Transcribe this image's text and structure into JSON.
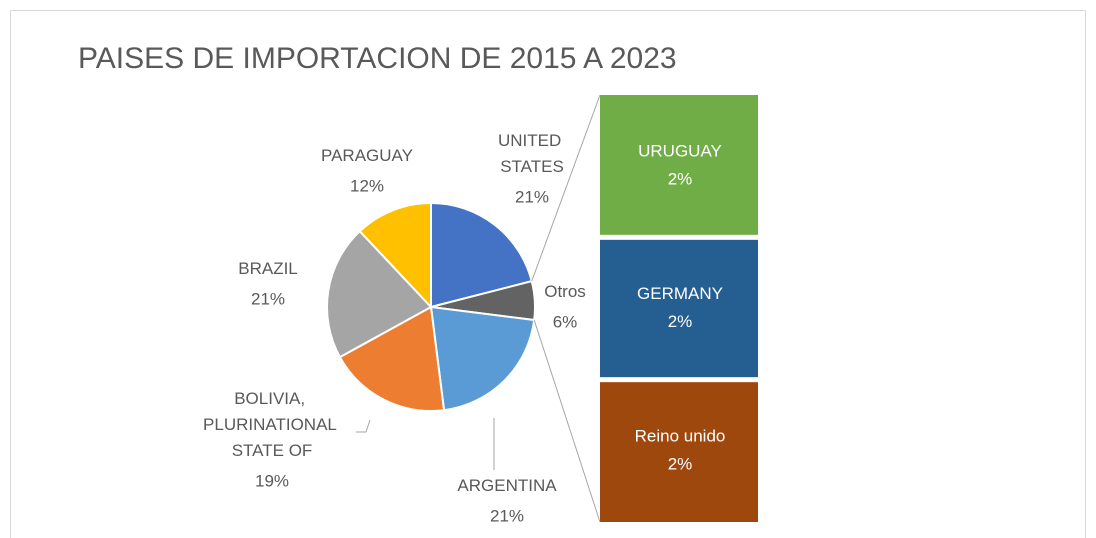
{
  "chart_data": {
    "type": "pie-of-bar",
    "title": "PAISES DE IMPORTACION DE 2015 A 2023",
    "categories": [
      "UNITED STATES",
      "Otros",
      "ARGENTINA",
      "BOLIVIA, PLURINATIONAL STATE OF",
      "BRAZIL",
      "PARAGUAY"
    ],
    "values": [
      21,
      6,
      21,
      19,
      21,
      12
    ],
    "value_labels": [
      "21%",
      "6%",
      "21%",
      "19%",
      "21%",
      "12%"
    ],
    "colors": [
      "#4472c4",
      "#636363",
      "#5b9bd5",
      "#ed7d31",
      "#a5a5a5",
      "#ffc000"
    ],
    "bar": {
      "categories": [
        "URUGUAY",
        "GERMANY",
        "Reino unido"
      ],
      "values": [
        2,
        2,
        2
      ],
      "value_labels": [
        "2%",
        "2%",
        "2%"
      ],
      "colors": [
        "#70ad47",
        "#255e91",
        "#9e480e"
      ]
    }
  }
}
